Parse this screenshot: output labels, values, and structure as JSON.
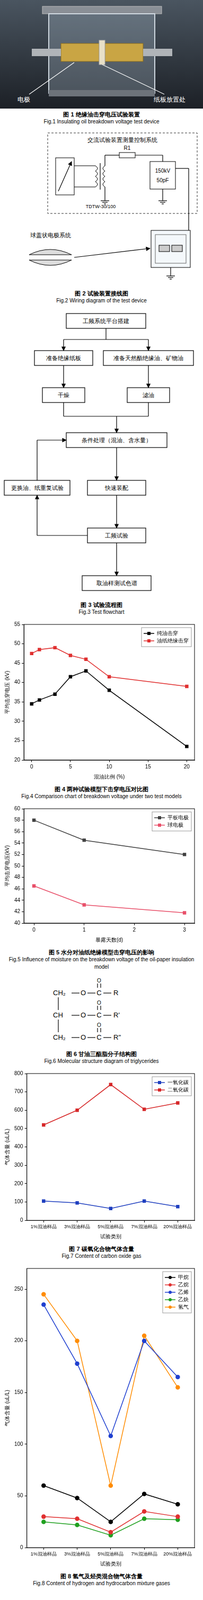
{
  "captions": [
    {
      "cn": "图 1 绝缘油击穿电压试验装置",
      "en": "Fig.1 Insulating oil breakdown voltage test device"
    },
    {
      "cn": "图 2 试验装置接线图",
      "en": "Fig.2 Wiring diagram of the test device"
    },
    {
      "cn": "图 3 试验流程图",
      "en": "Fig.3 Test flowchart"
    },
    {
      "cn": "图 4 两种试验模型下击穿电压对比图",
      "en": "Fig.4 Comparison chart of breakdown voltage under two test models"
    },
    {
      "cn": "图 5 水分对油纸绝缘模型击穿电压的影响",
      "en": "Fig.5 Influence of moisture on the breakdown voltage of the oil-paper insulation model"
    },
    {
      "cn": "图 6 甘油三酯脂分子结构图",
      "en": "Fig.6 Molecular structure diagram of triglycerides"
    },
    {
      "cn": "图 7 碳氧化合物气体含量",
      "en": "Fig.7 Content of carbon oxide gas"
    },
    {
      "cn": "图 8 氢气及烃类混合物气体含量",
      "en": "Fig.8 Content of hydrogen and hydrocarbon mixture gases"
    }
  ],
  "fig1": {
    "labels": [
      "电极",
      "纸板放置处"
    ]
  },
  "fig2": {
    "control_system": "交流试验装置测量控制系统",
    "transformer": "TDTW-30/100",
    "resistor": "R1",
    "divider": [
      "150kV",
      "50pF"
    ],
    "electrode_system": "球盖状电极系统"
  },
  "fig3": {
    "nodes": [
      "工频系统平台搭建",
      "准备绝缘纸板",
      "准备天然酯绝缘油、矿物油",
      "干燥",
      "滤油",
      "条件处理（混油、含水量）",
      "快速装配",
      "工频试验",
      "取油样测试色谱",
      "更换油、纸重复试验"
    ]
  },
  "fig6": {
    "rows": [
      {
        "carbon": "CH₂",
        "chain": "R"
      },
      {
        "carbon": "CH",
        "chain": "R'"
      },
      {
        "carbon": "CH₂",
        "chain": "R''"
      }
    ],
    "oxygen": "O",
    "carbonyl_carbon": "C"
  },
  "chart_data": [
    {
      "type": "line",
      "x_label": "混油比例 (%)",
      "y_label": "平均击穿电压 (kV)",
      "x": [
        0,
        1,
        3,
        5,
        7,
        10,
        20
      ],
      "xlim": [
        -1,
        21
      ],
      "xticks": [
        0,
        5,
        10,
        15,
        20
      ],
      "ylim": [
        20,
        55
      ],
      "yticks": [
        20,
        25,
        30,
        35,
        40,
        45,
        50,
        55
      ],
      "grid": false,
      "legend": "upper right",
      "marker": "square",
      "series": [
        {
          "name": "纯油击穿",
          "color": "#000000",
          "values": [
            34.5,
            35.5,
            37,
            41.5,
            43,
            38,
            23.5
          ]
        },
        {
          "name": "油纸绝缘击穿",
          "color": "#e03030",
          "values": [
            47.5,
            48.5,
            49,
            47,
            46,
            41.5,
            39
          ]
        }
      ]
    },
    {
      "type": "line",
      "x_label": "暴露天数(d)",
      "y_label": "平均击穿电压(kV)",
      "x": [
        0,
        1,
        3
      ],
      "xlim": [
        -0.2,
        3.2
      ],
      "xticks": [
        0,
        1,
        2,
        3
      ],
      "ylim": [
        40,
        60
      ],
      "yticks": [
        40,
        42,
        44,
        46,
        48,
        50,
        52,
        54,
        56,
        58,
        60
      ],
      "grid": false,
      "legend": "upper right",
      "marker": "square",
      "series": [
        {
          "name": "平板电极",
          "color": "#404040",
          "values": [
            58,
            54.5,
            52
          ]
        },
        {
          "name": "球电极",
          "color": "#e8506a",
          "values": [
            46.5,
            43.2,
            41.8
          ]
        }
      ]
    },
    {
      "type": "line",
      "x_label": "试验类别",
      "y_label": "气体含量 (uL/L)",
      "categories": [
        "1%混油样品",
        "3%混油样品",
        "5%混油样品",
        "7%混油样品",
        "20%混油样品"
      ],
      "ylim": [
        0,
        800
      ],
      "yticks": [
        0,
        100,
        200,
        300,
        400,
        500,
        600,
        700,
        800
      ],
      "grid": false,
      "legend": "upper right",
      "marker": "square",
      "series": [
        {
          "name": "一氧化碳",
          "color": "#1f3fbf",
          "values": [
            105,
            95,
            65,
            105,
            75
          ]
        },
        {
          "name": "二氧化碳",
          "color": "#d62728",
          "values": [
            520,
            600,
            740,
            605,
            640
          ]
        }
      ]
    },
    {
      "type": "line",
      "x_label": "试验类别",
      "y_label": "气体含量 (uL/L)",
      "categories": [
        "1%混油样品",
        "3%混油样品",
        "5%混油样品",
        "7%混油样品",
        "20%混油样品"
      ],
      "ylim": [
        0,
        270
      ],
      "yticks": [
        0,
        50,
        100,
        150,
        200,
        250
      ],
      "grid": false,
      "legend": "upper right",
      "marker": "circle",
      "series": [
        {
          "name": "甲烷",
          "color": "#000000",
          "values": [
            60,
            48,
            25,
            52,
            42
          ]
        },
        {
          "name": "乙烷",
          "color": "#e03030",
          "values": [
            30,
            28,
            15,
            35,
            30
          ]
        },
        {
          "name": "乙烯",
          "color": "#2040d0",
          "values": [
            235,
            178,
            108,
            200,
            165
          ]
        },
        {
          "name": "乙炔",
          "color": "#20a020",
          "values": [
            25,
            22,
            12,
            28,
            27
          ]
        },
        {
          "name": "氢气",
          "color": "#ff8c00",
          "values": [
            245,
            200,
            60,
            205,
            155
          ]
        }
      ]
    }
  ]
}
